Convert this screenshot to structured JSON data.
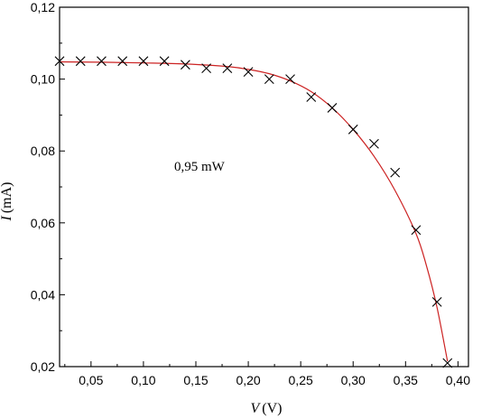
{
  "chart_data": {
    "type": "scatter",
    "annotation": "0,95 mW",
    "xlabel_var": "V",
    "xlabel_unit": "(V)",
    "ylabel_var": "I",
    "ylabel_unit": "(mA)",
    "xlim": [
      0.02,
      0.41
    ],
    "ylim": [
      0.02,
      0.12
    ],
    "xticks": [
      {
        "value": 0.05,
        "label": "0,05"
      },
      {
        "value": 0.1,
        "label": "0,10"
      },
      {
        "value": 0.15,
        "label": "0,15"
      },
      {
        "value": 0.2,
        "label": "0,20"
      },
      {
        "value": 0.25,
        "label": "0,25"
      },
      {
        "value": 0.3,
        "label": "0,30"
      },
      {
        "value": 0.35,
        "label": "0,35"
      },
      {
        "value": 0.4,
        "label": "0,40"
      }
    ],
    "yticks": [
      {
        "value": 0.02,
        "label": "0,02"
      },
      {
        "value": 0.04,
        "label": "0,04"
      },
      {
        "value": 0.06,
        "label": "0,06"
      },
      {
        "value": 0.08,
        "label": "0,08"
      },
      {
        "value": 0.1,
        "label": "0,10"
      },
      {
        "value": 0.12,
        "label": "0,12"
      }
    ],
    "series": [
      {
        "kind": "points",
        "marker": "x",
        "color": "#000000",
        "x": [
          0.02,
          0.04,
          0.06,
          0.08,
          0.1,
          0.12,
          0.14,
          0.16,
          0.18,
          0.2,
          0.22,
          0.24,
          0.26,
          0.28,
          0.3,
          0.32,
          0.34,
          0.36,
          0.38,
          0.39
        ],
        "y": [
          0.105,
          0.105,
          0.105,
          0.105,
          0.105,
          0.105,
          0.104,
          0.103,
          0.103,
          0.102,
          0.1,
          0.1,
          0.095,
          0.092,
          0.086,
          0.082,
          0.074,
          0.058,
          0.038,
          0.021
        ]
      },
      {
        "kind": "fit",
        "color": "#cc2222",
        "x": [
          0.02,
          0.06,
          0.1,
          0.14,
          0.18,
          0.2,
          0.22,
          0.24,
          0.26,
          0.28,
          0.3,
          0.32,
          0.34,
          0.36,
          0.37,
          0.38,
          0.39
        ],
        "y": [
          0.1048,
          0.1047,
          0.1045,
          0.1042,
          0.1035,
          0.1027,
          0.1015,
          0.0995,
          0.0965,
          0.092,
          0.086,
          0.0785,
          0.069,
          0.057,
          0.048,
          0.0365,
          0.0215
        ]
      }
    ]
  }
}
